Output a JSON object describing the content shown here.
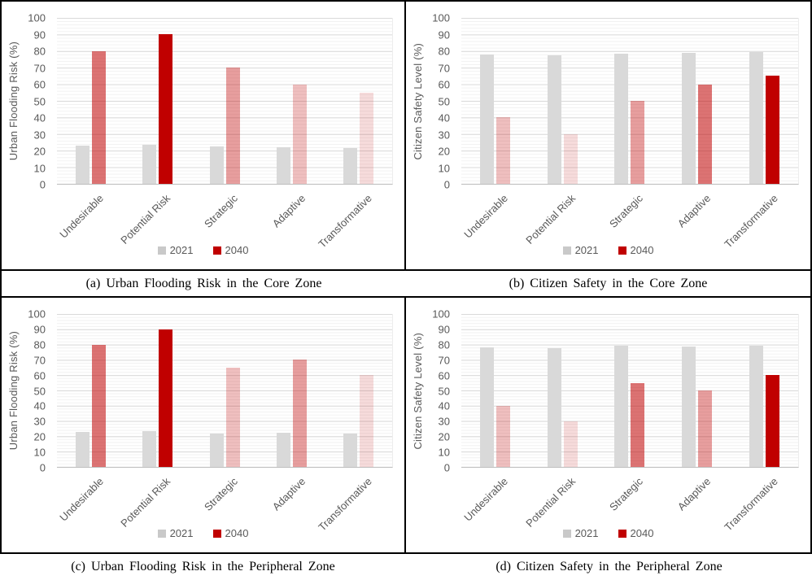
{
  "figure": {
    "border_color": "#000000",
    "background": "#ffffff",
    "text_color": "#595959",
    "gridline_major_color": "#d9d9d9",
    "gridline_minor_color": "#f1f1f1",
    "axis_line_color": "#bfbfbf"
  },
  "chart_data": [
    {
      "id": "a",
      "type": "bar",
      "caption": "(a) Urban Flooding Risk in the Core Zone",
      "ylabel": "Urban Flooding Risk (%)",
      "ylim": [
        0,
        100
      ],
      "ytick_step": 10,
      "grid": true,
      "legend_position": "bottom",
      "categories": [
        "Undesirable",
        "Potential Risk",
        "Strategic",
        "Adaptive",
        "Transformative"
      ],
      "series": [
        {
          "name": "2021",
          "legend_color": "#C9C9C9",
          "values": [
            23,
            23.5,
            22.5,
            22,
            21.5
          ],
          "colors": [
            "#D9D9D9",
            "#D9D9D9",
            "#D9D9D9",
            "#D9D9D9",
            "#D9D9D9"
          ]
        },
        {
          "name": "2040",
          "legend_color": "#C00000",
          "values": [
            80,
            90,
            70,
            60,
            55
          ],
          "colors": [
            "#C000008C",
            "#C00000",
            "#C0000061",
            "#C0000040",
            "#C0000024"
          ]
        }
      ]
    },
    {
      "id": "b",
      "type": "bar",
      "caption": "(b) Citizen Safety in the Core Zone",
      "ylabel": "Citizen Safety Level (%)",
      "ylim": [
        0,
        100
      ],
      "ytick_step": 10,
      "grid": true,
      "legend_position": "bottom",
      "categories": [
        "Undesirable",
        "Potential Risk",
        "Strategic",
        "Adaptive",
        "Transformative"
      ],
      "series": [
        {
          "name": "2021",
          "legend_color": "#C9C9C9",
          "values": [
            78,
            77.5,
            78.5,
            79,
            79.5
          ],
          "colors": [
            "#D9D9D9",
            "#D9D9D9",
            "#D9D9D9",
            "#D9D9D9",
            "#D9D9D9"
          ]
        },
        {
          "name": "2040",
          "legend_color": "#C00000",
          "values": [
            40,
            30,
            50,
            60,
            65
          ],
          "colors": [
            "#C0000040",
            "#C0000024",
            "#C0000061",
            "#C000008C",
            "#C00000"
          ]
        }
      ]
    },
    {
      "id": "c",
      "type": "bar",
      "caption": "(c) Urban Flooding Risk in the Peripheral Zone",
      "ylabel": "Urban Flooding Risk  (%)",
      "ylim": [
        0,
        100
      ],
      "ytick_step": 10,
      "grid": true,
      "legend_position": "bottom",
      "categories": [
        "Undesirable",
        "Potential Risk",
        "Strategic",
        "Adaptive",
        "Transformative"
      ],
      "series": [
        {
          "name": "2021",
          "legend_color": "#C9C9C9",
          "values": [
            23,
            23.5,
            22,
            22.5,
            22
          ],
          "colors": [
            "#D9D9D9",
            "#D9D9D9",
            "#D9D9D9",
            "#D9D9D9",
            "#D9D9D9"
          ]
        },
        {
          "name": "2040",
          "legend_color": "#C00000",
          "values": [
            80,
            90,
            65,
            70,
            60
          ],
          "colors": [
            "#C000008C",
            "#C00000",
            "#C0000040",
            "#C0000061",
            "#C0000024"
          ]
        }
      ]
    },
    {
      "id": "d",
      "type": "bar",
      "caption": "(d) Citizen Safety in the Peripheral Zone",
      "ylabel": "Citizen Safety Level (%)",
      "ylim": [
        0,
        100
      ],
      "ytick_step": 10,
      "grid": true,
      "legend_position": "bottom",
      "categories": [
        "Undesirable",
        "Potential Risk",
        "Strategic",
        "Adaptive",
        "Transformative"
      ],
      "series": [
        {
          "name": "2021",
          "legend_color": "#C9C9C9",
          "values": [
            78,
            77.5,
            79,
            78.5,
            79
          ],
          "colors": [
            "#D9D9D9",
            "#D9D9D9",
            "#D9D9D9",
            "#D9D9D9",
            "#D9D9D9"
          ]
        },
        {
          "name": "2040",
          "legend_color": "#C00000",
          "values": [
            40,
            30,
            55,
            50,
            60
          ],
          "colors": [
            "#C0000040",
            "#C0000024",
            "#C000008C",
            "#C0000061",
            "#C00000"
          ]
        }
      ]
    }
  ]
}
